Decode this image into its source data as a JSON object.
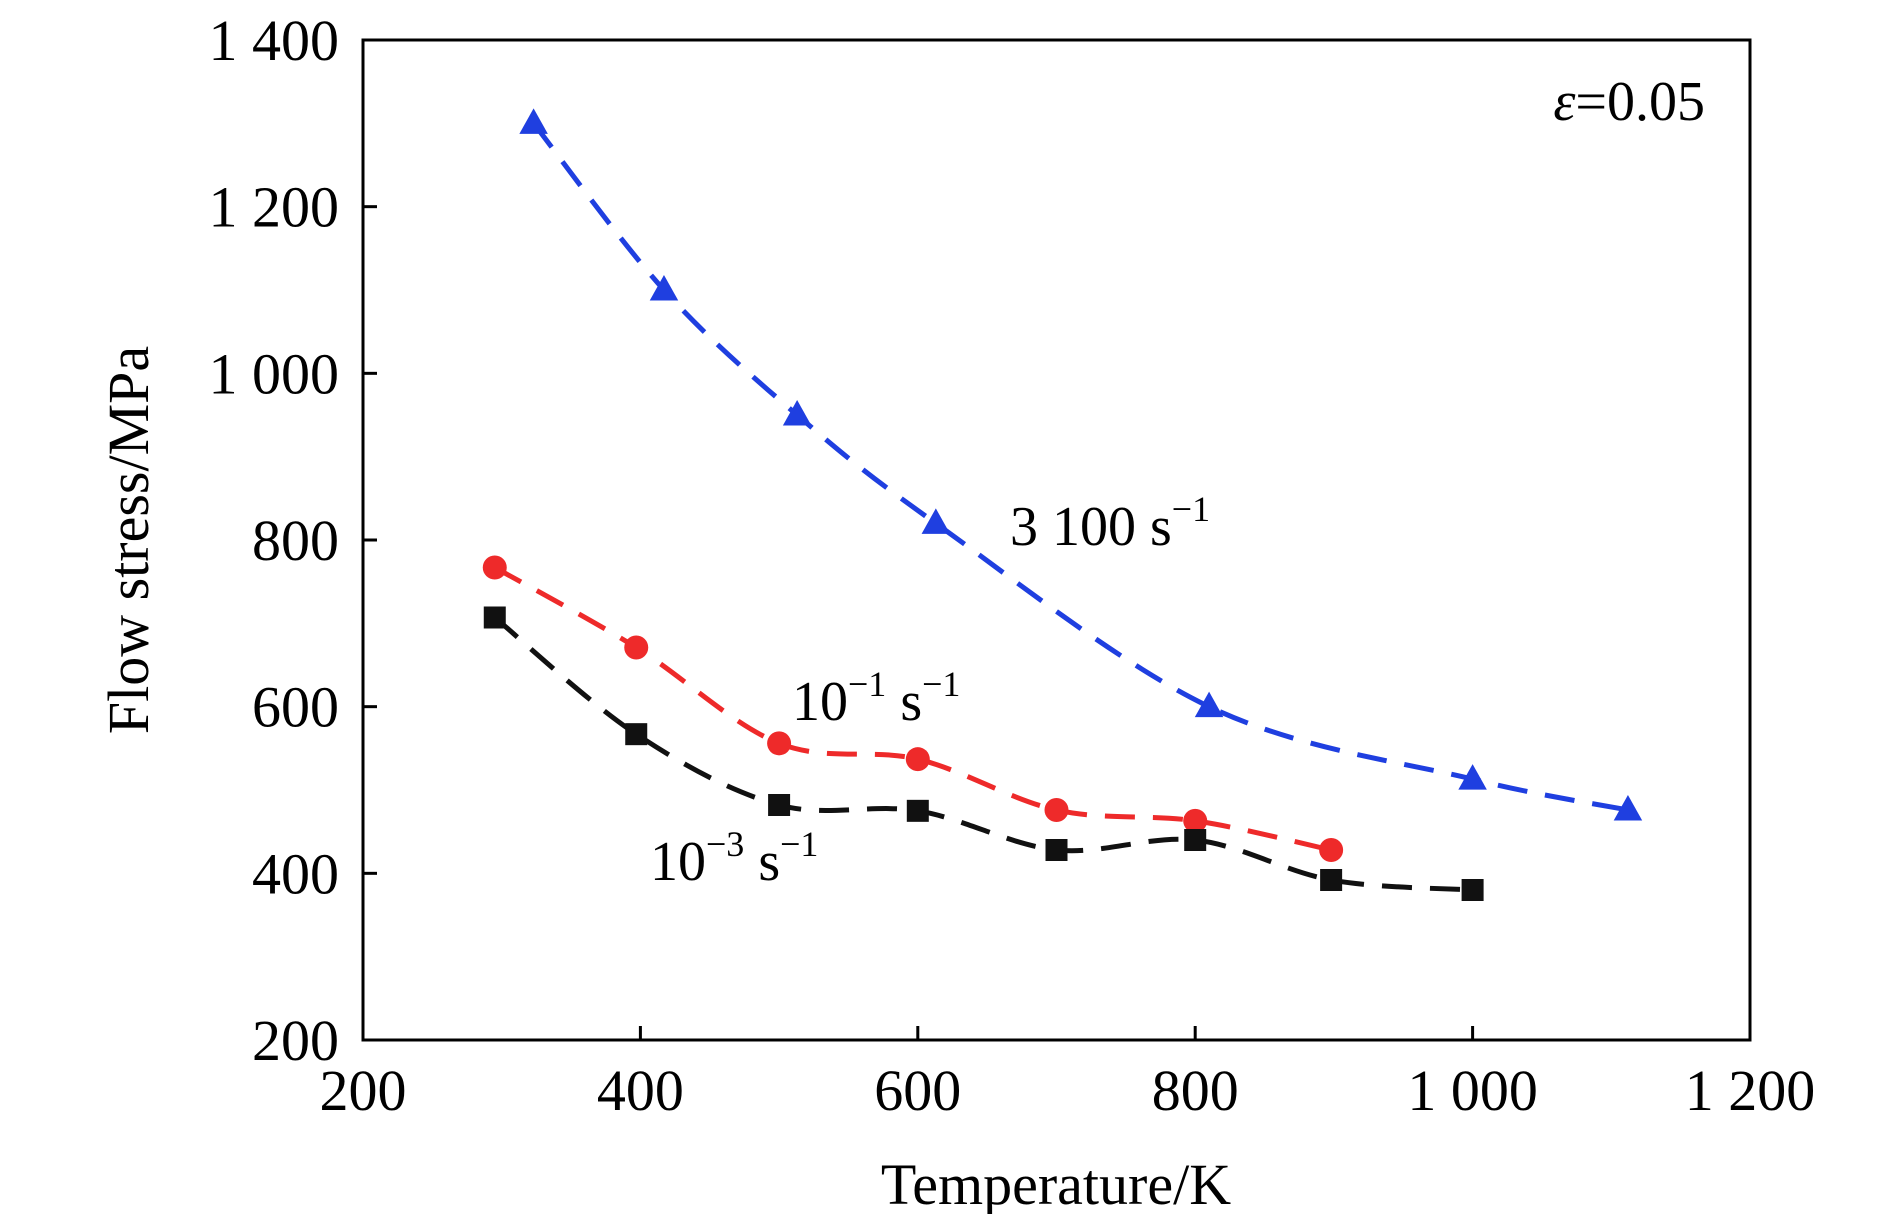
{
  "chart_data": {
    "type": "line",
    "title": "",
    "xlabel": "Temperature/K",
    "ylabel": "Flow stress/MPa",
    "xlim": [
      200,
      1200
    ],
    "ylim": [
      200,
      1400
    ],
    "xticks": [
      200,
      400,
      600,
      800,
      1000,
      1200
    ],
    "yticks": [
      200,
      400,
      600,
      800,
      1000,
      1200,
      1400
    ],
    "xtick_labels": [
      "200",
      "400",
      "600",
      "800",
      "1 000",
      "1 200"
    ],
    "ytick_labels": [
      "200",
      "400",
      "600",
      "800",
      "1 000",
      "1 200",
      "1 400"
    ],
    "grid": false,
    "annotation_strain": {
      "symbol": "ε",
      "value": "=0.05"
    },
    "series": [
      {
        "name": "3 100 s−1",
        "label_base": "3 100 s",
        "label_sup": "−1",
        "color": "#1f3fe0",
        "marker": "triangle",
        "line_style": "dashed",
        "x": [
          323,
          417,
          513,
          613,
          810,
          1000,
          1112
        ],
        "y": [
          1300,
          1100,
          950,
          820,
          600,
          513,
          476
        ]
      },
      {
        "name": "10−1 s−1",
        "label_base": "10",
        "label_sup": "−1",
        "label_tail": " s",
        "label_sup2": "−1",
        "color": "#ee2a2a",
        "marker": "circle",
        "line_style": "dashed",
        "x": [
          295,
          397,
          500,
          600,
          700,
          800,
          898
        ],
        "y": [
          767,
          671,
          556,
          537,
          476,
          463,
          428
        ]
      },
      {
        "name": "10−3 s−1",
        "label_base": "10",
        "label_sup": "−3",
        "label_tail": " s",
        "label_sup2": "−1",
        "color": "#111111",
        "marker": "square",
        "line_style": "dashed",
        "x": [
          295,
          397,
          500,
          600,
          700,
          800,
          898,
          1000
        ],
        "y": [
          707,
          567,
          482,
          475,
          428,
          440,
          392,
          380
        ]
      }
    ]
  }
}
